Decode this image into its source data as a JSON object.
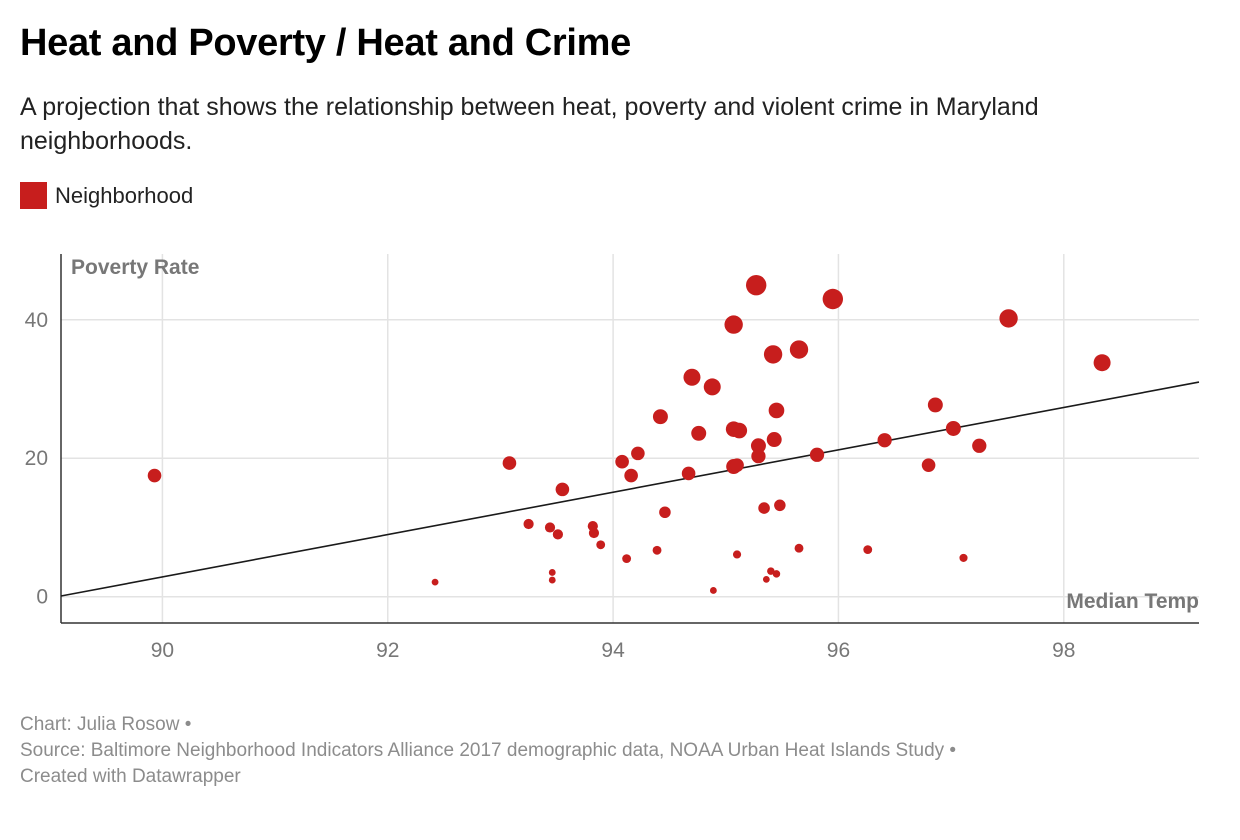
{
  "header": {
    "title": "Heat and Poverty / Heat and Crime",
    "subtitle": "A projection that shows the relationship between heat, poverty and violent crime in Maryland neighborhoods."
  },
  "legend": {
    "label": "Neighborhood",
    "color": "#c71e1d"
  },
  "footer": {
    "chart_credit": "Chart: Julia Rosow •",
    "source": "Source: Baltimore Neighborhood Indicators Alliance 2017 demographic data, NOAA Urban Heat Islands Study •",
    "created_with": "Created with Datawrapper"
  },
  "chart_data": {
    "type": "scatter",
    "xlabel": "Median Temp",
    "ylabel": "Poverty Rate",
    "xlim": [
      89.1,
      99.2
    ],
    "ylim": [
      -3.8,
      49.5
    ],
    "x_ticks": [
      90,
      92,
      94,
      96,
      98
    ],
    "y_ticks": [
      0,
      20,
      40
    ],
    "grid": true,
    "point_color": "#c71e1d",
    "trendline": {
      "x": [
        89.1,
        99.2
      ],
      "y": [
        0.1,
        31.0
      ]
    },
    "series": [
      {
        "name": "Neighborhood",
        "points": [
          {
            "x": 89.93,
            "y": 17.5,
            "size": 2
          },
          {
            "x": 92.42,
            "y": 2.1,
            "size": 1
          },
          {
            "x": 93.08,
            "y": 19.3,
            "size": 2
          },
          {
            "x": 93.25,
            "y": 10.5,
            "size": 1.5
          },
          {
            "x": 93.44,
            "y": 10.0,
            "size": 1.5
          },
          {
            "x": 93.46,
            "y": 3.5,
            "size": 1
          },
          {
            "x": 93.46,
            "y": 2.4,
            "size": 1
          },
          {
            "x": 93.51,
            "y": 9.0,
            "size": 1.5
          },
          {
            "x": 93.55,
            "y": 15.5,
            "size": 2
          },
          {
            "x": 93.82,
            "y": 10.2,
            "size": 1.5
          },
          {
            "x": 93.83,
            "y": 9.2,
            "size": 1.5
          },
          {
            "x": 93.89,
            "y": 7.5,
            "size": 1.3
          },
          {
            "x": 94.08,
            "y": 19.5,
            "size": 2
          },
          {
            "x": 94.12,
            "y": 5.5,
            "size": 1.3
          },
          {
            "x": 94.16,
            "y": 17.5,
            "size": 2
          },
          {
            "x": 94.22,
            "y": 20.7,
            "size": 2
          },
          {
            "x": 94.39,
            "y": 6.7,
            "size": 1.3
          },
          {
            "x": 94.42,
            "y": 26.0,
            "size": 2.2
          },
          {
            "x": 94.46,
            "y": 12.2,
            "size": 1.7
          },
          {
            "x": 94.67,
            "y": 17.8,
            "size": 2
          },
          {
            "x": 94.7,
            "y": 31.7,
            "size": 2.5
          },
          {
            "x": 94.76,
            "y": 23.6,
            "size": 2.2
          },
          {
            "x": 94.88,
            "y": 30.3,
            "size": 2.5
          },
          {
            "x": 94.89,
            "y": 0.9,
            "size": 1
          },
          {
            "x": 95.07,
            "y": 39.3,
            "size": 2.7
          },
          {
            "x": 95.07,
            "y": 18.8,
            "size": 2.2
          },
          {
            "x": 95.07,
            "y": 24.2,
            "size": 2.3
          },
          {
            "x": 95.1,
            "y": 19.0,
            "size": 2
          },
          {
            "x": 95.1,
            "y": 6.1,
            "size": 1.2
          },
          {
            "x": 95.12,
            "y": 24.0,
            "size": 2.3
          },
          {
            "x": 95.27,
            "y": 45.0,
            "size": 3
          },
          {
            "x": 95.29,
            "y": 21.8,
            "size": 2.2
          },
          {
            "x": 95.29,
            "y": 20.3,
            "size": 2.1
          },
          {
            "x": 95.34,
            "y": 12.8,
            "size": 1.7
          },
          {
            "x": 95.36,
            "y": 2.5,
            "size": 1
          },
          {
            "x": 95.4,
            "y": 3.7,
            "size": 1.1
          },
          {
            "x": 95.42,
            "y": 35.0,
            "size": 2.7
          },
          {
            "x": 95.43,
            "y": 22.7,
            "size": 2.2
          },
          {
            "x": 95.45,
            "y": 26.9,
            "size": 2.3
          },
          {
            "x": 95.45,
            "y": 3.3,
            "size": 1.1
          },
          {
            "x": 95.48,
            "y": 13.2,
            "size": 1.7
          },
          {
            "x": 95.65,
            "y": 35.7,
            "size": 2.7
          },
          {
            "x": 95.65,
            "y": 7.0,
            "size": 1.3
          },
          {
            "x": 95.81,
            "y": 20.5,
            "size": 2.1
          },
          {
            "x": 95.95,
            "y": 43.0,
            "size": 3
          },
          {
            "x": 96.26,
            "y": 6.8,
            "size": 1.3
          },
          {
            "x": 96.41,
            "y": 22.6,
            "size": 2.1
          },
          {
            "x": 96.8,
            "y": 19.0,
            "size": 2
          },
          {
            "x": 96.86,
            "y": 27.7,
            "size": 2.2
          },
          {
            "x": 97.02,
            "y": 24.3,
            "size": 2.2
          },
          {
            "x": 97.11,
            "y": 5.6,
            "size": 1.2
          },
          {
            "x": 97.25,
            "y": 21.8,
            "size": 2.1
          },
          {
            "x": 97.51,
            "y": 40.2,
            "size": 2.7
          },
          {
            "x": 98.34,
            "y": 33.8,
            "size": 2.5
          }
        ]
      }
    ]
  }
}
